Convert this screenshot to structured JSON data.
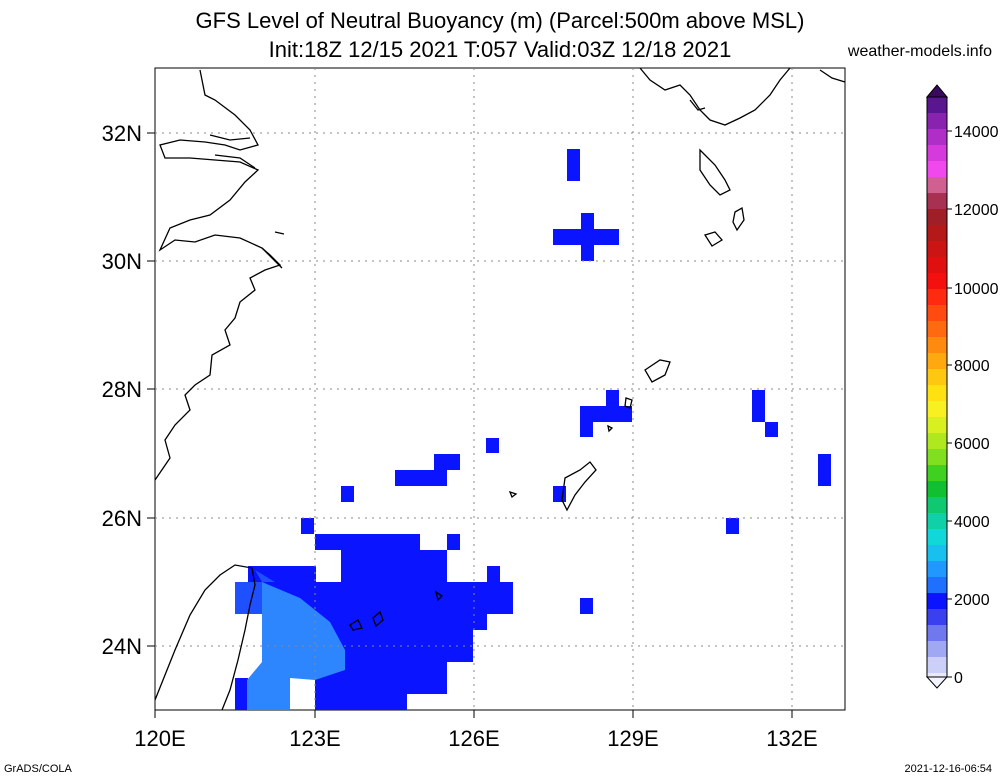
{
  "header": {
    "title_line1": "GFS Level of Neutral Buoyancy (m) (Parcel:500m above MSL)",
    "title_line2": "Init:18Z 12/15 2021 T:057 Valid:03Z 12/18 2021",
    "site": "weather-models.info"
  },
  "footer": {
    "left": "GrADS/COLA",
    "right": "2021-12-16-06:54"
  },
  "map": {
    "lon_ticks": [
      "120E",
      "123E",
      "126E",
      "129E",
      "132E"
    ],
    "lat_ticks": [
      "32N",
      "30N",
      "28N",
      "26N",
      "24N"
    ],
    "colorbar_labels": [
      "14000",
      "12000",
      "10000",
      "8000",
      "6000",
      "4000",
      "2000",
      "0"
    ],
    "colors": {
      "deep_blue": "#0a14ff",
      "mid_blue": "#1e50ff",
      "light_blue": "#2e86ff"
    }
  }
}
